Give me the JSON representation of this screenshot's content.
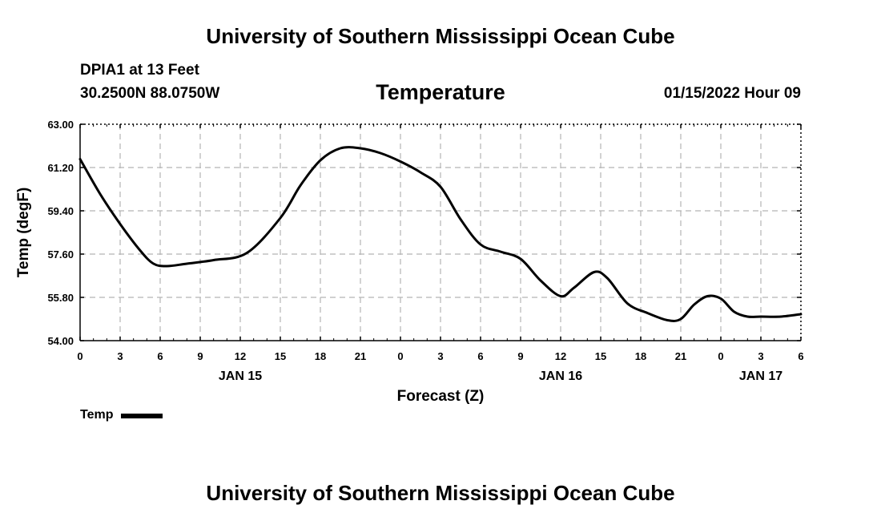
{
  "header": {
    "title": "University of Southern Mississippi Ocean Cube",
    "station": "DPIA1 at 13 Feet",
    "coordinates": "30.2500N  88.0750W",
    "timestamp": "01/15/2022 Hour 09"
  },
  "footer": {
    "title": "University of Southern Mississippi Ocean Cube"
  },
  "chart_data": {
    "type": "line",
    "title": "Temperature",
    "xlabel": "Forecast (Z)",
    "ylabel": "Temp (degF)",
    "ylim": [
      54.0,
      63.0
    ],
    "y_ticks": [
      "54.00",
      "55.80",
      "57.60",
      "59.40",
      "61.20",
      "63.00"
    ],
    "x_range_hours": [
      0,
      54
    ],
    "x_tick_labels": [
      "0",
      "3",
      "6",
      "9",
      "12",
      "15",
      "18",
      "21",
      "0",
      "3",
      "6",
      "9",
      "12",
      "15",
      "18",
      "21",
      "0",
      "3",
      "6"
    ],
    "date_labels": [
      {
        "label": "JAN 15",
        "hour": 12
      },
      {
        "label": "JAN 16",
        "hour": 36
      },
      {
        "label": "JAN 17",
        "hour": 51
      }
    ],
    "grid": true,
    "legend": [
      {
        "name": "Temp",
        "position": "bottom-left"
      }
    ],
    "series": [
      {
        "name": "Temp",
        "x": [
          0,
          1.5,
          3,
          4.5,
          5.5,
          6.5,
          8,
          10,
          12.5,
          15,
          16.5,
          18,
          19.5,
          21,
          22.5,
          24,
          25.5,
          27,
          28.5,
          30,
          31.5,
          33,
          34.5,
          36,
          37,
          38.5,
          39.5,
          41,
          42.5,
          44,
          45,
          46,
          47,
          48,
          49,
          50,
          51,
          52.5,
          54
        ],
        "y": [
          61.55,
          60.1,
          58.85,
          57.75,
          57.2,
          57.1,
          57.2,
          57.35,
          57.65,
          59.1,
          60.45,
          61.5,
          62.0,
          62.0,
          61.8,
          61.45,
          61.0,
          60.4,
          59.05,
          58.0,
          57.7,
          57.4,
          56.5,
          55.85,
          56.2,
          56.85,
          56.6,
          55.55,
          55.15,
          54.85,
          54.9,
          55.5,
          55.85,
          55.75,
          55.2,
          55.0,
          55.0,
          55.0,
          55.1
        ]
      }
    ]
  }
}
